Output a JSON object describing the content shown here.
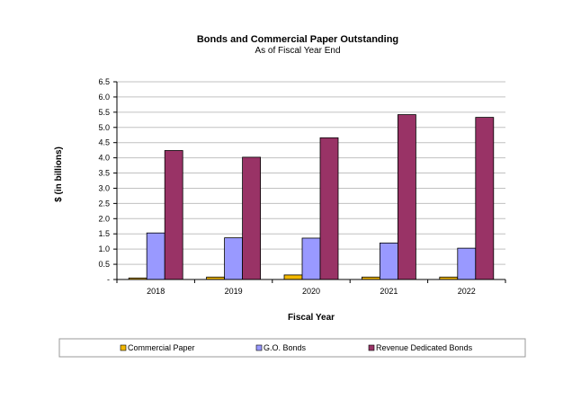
{
  "chart_data": {
    "type": "bar",
    "title": "Bonds and Commercial Paper Outstanding",
    "subtitle": "As of Fiscal Year End",
    "xlabel": "Fiscal Year",
    "ylabel": "$ (in billions)",
    "ylim": [
      0,
      6.5
    ],
    "yticks": [
      "-",
      "0.5",
      "1.0",
      "1.5",
      "2.0",
      "2.5",
      "3.0",
      "3.5",
      "4.0",
      "4.5",
      "5.0",
      "5.5",
      "6.0",
      "6.5"
    ],
    "grid": true,
    "legend_position": "bottom",
    "categories": [
      "2018",
      "2019",
      "2020",
      "2021",
      "2022"
    ],
    "series": [
      {
        "name": "Commercial Paper",
        "color": "#F2B800",
        "values": [
          0.05,
          0.08,
          0.15,
          0.08,
          0.08
        ]
      },
      {
        "name": "G.O. Bonds",
        "color": "#9999FF",
        "values": [
          1.53,
          1.37,
          1.36,
          1.2,
          1.03
        ]
      },
      {
        "name": "Revenue Dedicated Bonds",
        "color": "#993366",
        "values": [
          4.24,
          4.02,
          4.66,
          5.42,
          5.33
        ]
      }
    ]
  }
}
